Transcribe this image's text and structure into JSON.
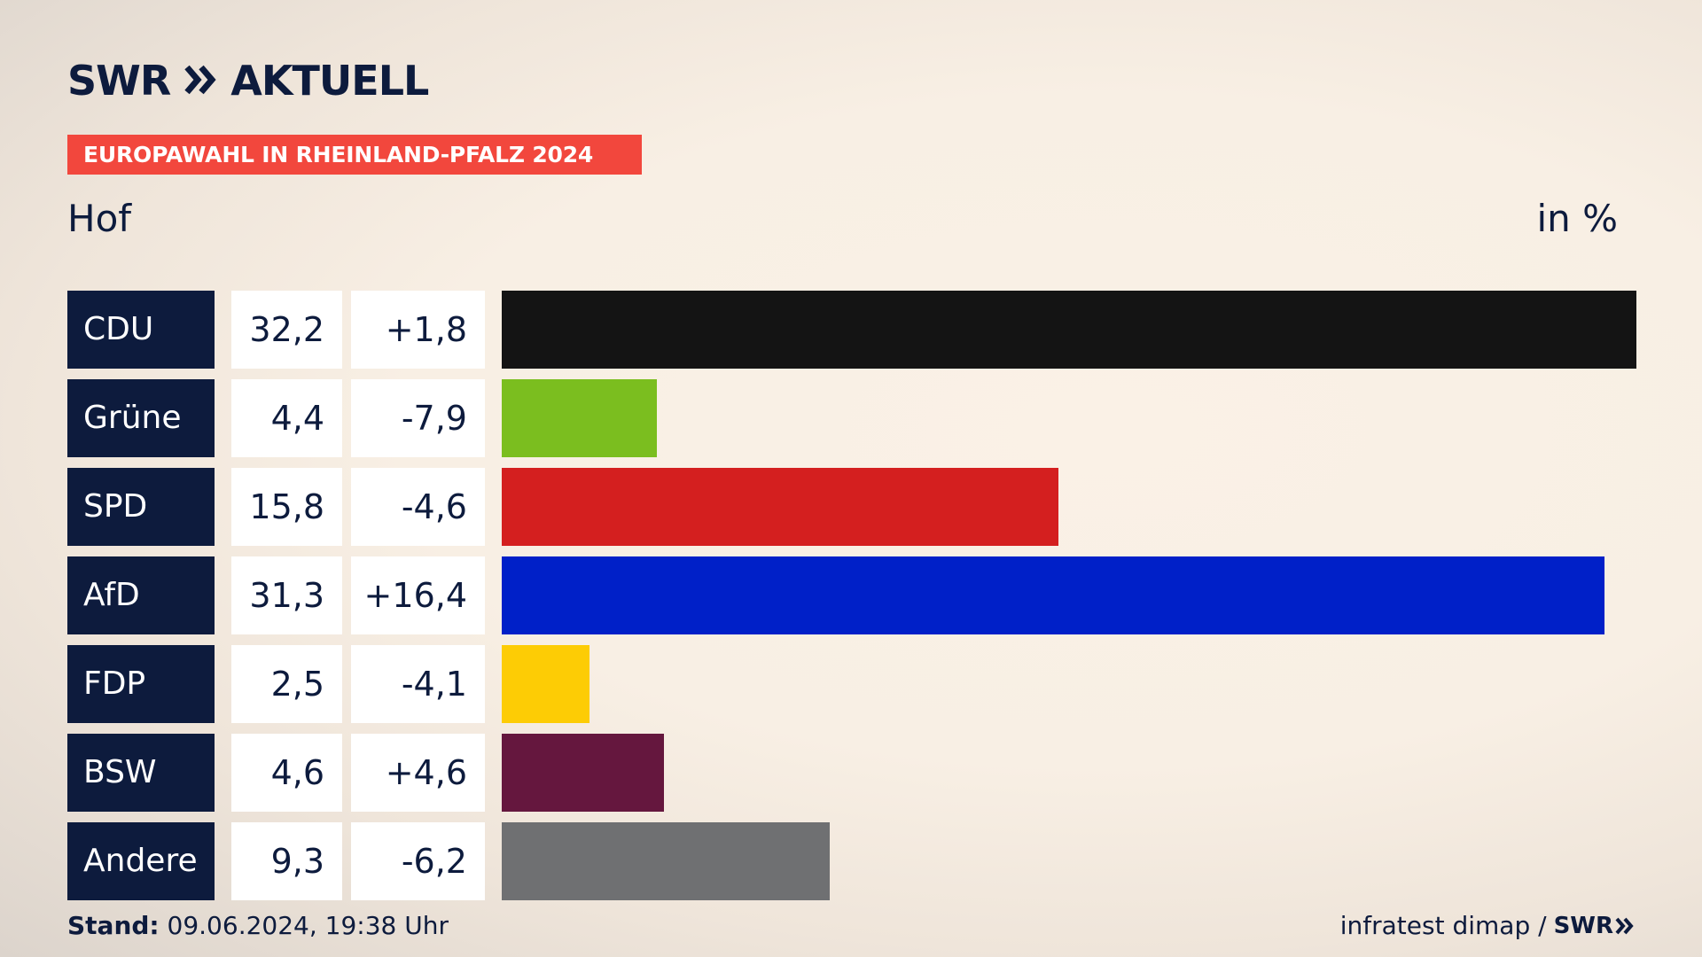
{
  "brand": {
    "logo_left": "SWR",
    "logo_right": "AKTUELL",
    "accent": "#f2473d",
    "navy": "#0d1b3d"
  },
  "banner": {
    "label": "EUROPAWAHL IN RHEINLAND-PFALZ 2024"
  },
  "region": "Hof",
  "unit_label": "in %",
  "chart_data": {
    "type": "bar",
    "orientation": "horizontal",
    "categories": [
      "CDU",
      "Grüne",
      "SPD",
      "AfD",
      "FDP",
      "BSW",
      "Andere"
    ],
    "values": [
      32.2,
      4.4,
      15.8,
      31.3,
      2.5,
      4.6,
      9.3
    ],
    "value_labels": [
      "32,2",
      "4,4",
      "15,8",
      "31,3",
      "2,5",
      "4,6",
      "9,3"
    ],
    "diff_labels": [
      "+1,8",
      "-7,9",
      "-4,6",
      "+16,4",
      "-4,1",
      "+4,6",
      "-6,2"
    ],
    "colors": [
      "#141414",
      "#7bbe1f",
      "#d41f1f",
      "#0020c8",
      "#fdcc05",
      "#65173e",
      "#6f7072"
    ],
    "xlim": [
      0,
      32.2
    ]
  },
  "footer": {
    "stand_label": "Stand:",
    "timestamp": "09.06.2024, 19:38 Uhr",
    "source": "infratest dimap /",
    "source_brand": "SWR"
  }
}
